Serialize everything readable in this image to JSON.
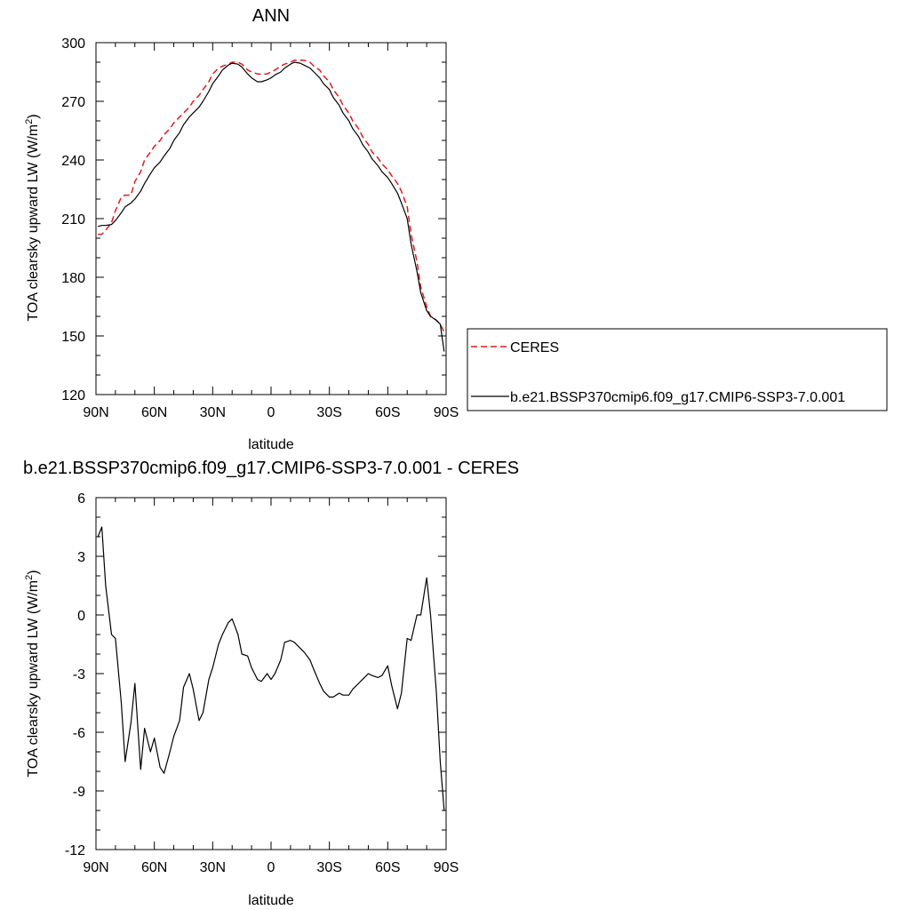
{
  "chart_data": [
    {
      "type": "line",
      "title": "ANN",
      "xlabel": "latitude",
      "ylabel_main": "TOA clearsky upward LW (W/m",
      "ylabel_sup": "2",
      "ylabel_end": ")",
      "xlim": [
        90,
        -90
      ],
      "ylim": [
        120,
        300
      ],
      "xticks": [
        90,
        60,
        30,
        0,
        -30,
        -60,
        -90
      ],
      "xtick_labels": [
        "90N",
        "60N",
        "30N",
        "0",
        "30S",
        "60S",
        "90S"
      ],
      "yticks": [
        120,
        150,
        180,
        210,
        240,
        270,
        300
      ],
      "ytick_labels": [
        "120",
        "150",
        "180",
        "210",
        "240",
        "270",
        "300"
      ],
      "legend": "right",
      "series": [
        {
          "name": "CERES",
          "color": "#e41a1c",
          "dash": "dashed",
          "x": [
            89,
            87,
            85,
            82,
            80,
            77,
            75,
            72,
            70,
            67,
            65,
            62,
            60,
            57,
            55,
            52,
            50,
            47,
            45,
            42,
            40,
            37,
            35,
            32,
            30,
            27,
            25,
            22,
            20,
            17,
            15,
            12,
            10,
            7,
            5,
            2,
            0,
            -2,
            -5,
            -7,
            -10,
            -12,
            -15,
            -17,
            -20,
            -22,
            -25,
            -27,
            -30,
            -32,
            -35,
            -37,
            -40,
            -42,
            -45,
            -47,
            -50,
            -52,
            -55,
            -57,
            -60,
            -62,
            -65,
            -67,
            -70,
            -72,
            -75,
            -77,
            -80,
            -82,
            -85,
            -87,
            -89
          ],
          "y": [
            202,
            202,
            204,
            208,
            214,
            221,
            222,
            222,
            229,
            234,
            240,
            244,
            247,
            250,
            253,
            256,
            259,
            262,
            264,
            267,
            270,
            273,
            276,
            280,
            284,
            287,
            288,
            289,
            290,
            290,
            289,
            286,
            285,
            284,
            284,
            284,
            285,
            286,
            288,
            289,
            290,
            291,
            291,
            291,
            290,
            288,
            286,
            283,
            280,
            276,
            272,
            268,
            264,
            260,
            256,
            252,
            248,
            244,
            241,
            238,
            235,
            232,
            228,
            224,
            216,
            202,
            188,
            175,
            165,
            160,
            158,
            156,
            152
          ]
        },
        {
          "name": "b.e21.BSSP370cmip6.f09_g17.CMIP6-SSP3-7.0.001",
          "color": "#000000",
          "dash": "solid",
          "x": [
            89,
            87,
            85,
            82,
            80,
            77,
            75,
            72,
            70,
            67,
            65,
            62,
            60,
            57,
            55,
            52,
            50,
            47,
            45,
            42,
            40,
            37,
            35,
            32,
            30,
            27,
            25,
            22,
            20,
            17,
            15,
            12,
            10,
            7,
            5,
            2,
            0,
            -2,
            -5,
            -7,
            -10,
            -12,
            -15,
            -17,
            -20,
            -22,
            -25,
            -27,
            -30,
            -32,
            -35,
            -37,
            -40,
            -42,
            -45,
            -47,
            -50,
            -52,
            -55,
            -57,
            -60,
            -62,
            -65,
            -67,
            -70,
            -72,
            -75,
            -77,
            -80,
            -82,
            -85,
            -87,
            -89
          ],
          "y": [
            206,
            206.5,
            206.5,
            207,
            209,
            213,
            216,
            218,
            220,
            224,
            228,
            233,
            236,
            239,
            242,
            246,
            250,
            254,
            258,
            262,
            264,
            267,
            270,
            275,
            279,
            283,
            286,
            288.5,
            289.5,
            289,
            287.5,
            284,
            282,
            280,
            280,
            281,
            282,
            283.5,
            285,
            287,
            289,
            290,
            289.5,
            288.5,
            287,
            285,
            282,
            279,
            276,
            272,
            268,
            264,
            260,
            256,
            252,
            248,
            244,
            240.5,
            237,
            234,
            231,
            228,
            223,
            218,
            210,
            197,
            183,
            172,
            163,
            160,
            158,
            156,
            142
          ]
        }
      ]
    },
    {
      "type": "line",
      "title": "b.e21.BSSP370cmip6.f09_g17.CMIP6-SSP3-7.0.001 - CERES",
      "xlabel": "latitude",
      "ylabel_main": "TOA clearsky upward LW (W/m",
      "ylabel_sup": "2",
      "ylabel_end": ")",
      "xlim": [
        90,
        -90
      ],
      "ylim": [
        -12,
        6
      ],
      "xticks": [
        90,
        60,
        30,
        0,
        -30,
        -60,
        -90
      ],
      "xtick_labels": [
        "90N",
        "60N",
        "30N",
        "0",
        "30S",
        "60S",
        "90S"
      ],
      "yticks": [
        -12,
        -9,
        -6,
        -3,
        0,
        3,
        6
      ],
      "ytick_labels": [
        "-12",
        "-9",
        "-6",
        "-3",
        "0",
        "3",
        "6"
      ],
      "series": [
        {
          "color": "#000000",
          "dash": "solid",
          "x": [
            89,
            87,
            85,
            82,
            80,
            77,
            75,
            72,
            70,
            67,
            65,
            62,
            60,
            57,
            55,
            52,
            50,
            47,
            45,
            42,
            40,
            37,
            35,
            32,
            30,
            27,
            25,
            22,
            20,
            17,
            15,
            12,
            10,
            7,
            5,
            2,
            0,
            -2,
            -5,
            -7,
            -10,
            -12,
            -15,
            -17,
            -20,
            -22,
            -25,
            -27,
            -30,
            -32,
            -35,
            -37,
            -40,
            -42,
            -45,
            -47,
            -50,
            -52,
            -55,
            -57,
            -60,
            -62,
            -65,
            -67,
            -70,
            -72,
            -75,
            -77,
            -80,
            -82,
            -85,
            -87,
            -89
          ],
          "y": [
            4,
            4.5,
            1.5,
            -1,
            -1.2,
            -4.5,
            -7.5,
            -5.5,
            -3.5,
            -7.9,
            -5.8,
            -7,
            -6.3,
            -7.8,
            -8.1,
            -7,
            -6.2,
            -5.4,
            -3.7,
            -3,
            -3.8,
            -5.4,
            -5,
            -3.3,
            -2.7,
            -1.5,
            -1,
            -0.4,
            -0.2,
            -1,
            -2,
            -2.1,
            -2.7,
            -3.3,
            -3.4,
            -3,
            -3.3,
            -3,
            -2.3,
            -1.4,
            -1.3,
            -1.4,
            -1.7,
            -1.9,
            -2.3,
            -2.8,
            -3.5,
            -3.9,
            -4.2,
            -4.2,
            -4,
            -4.1,
            -4.1,
            -3.8,
            -3.5,
            -3.3,
            -3,
            -3.1,
            -3.2,
            -3.1,
            -2.6,
            -3.6,
            -4.8,
            -4,
            -1.2,
            -1.3,
            0,
            0,
            1.9,
            0,
            -4,
            -7.5,
            -10
          ]
        }
      ]
    }
  ]
}
